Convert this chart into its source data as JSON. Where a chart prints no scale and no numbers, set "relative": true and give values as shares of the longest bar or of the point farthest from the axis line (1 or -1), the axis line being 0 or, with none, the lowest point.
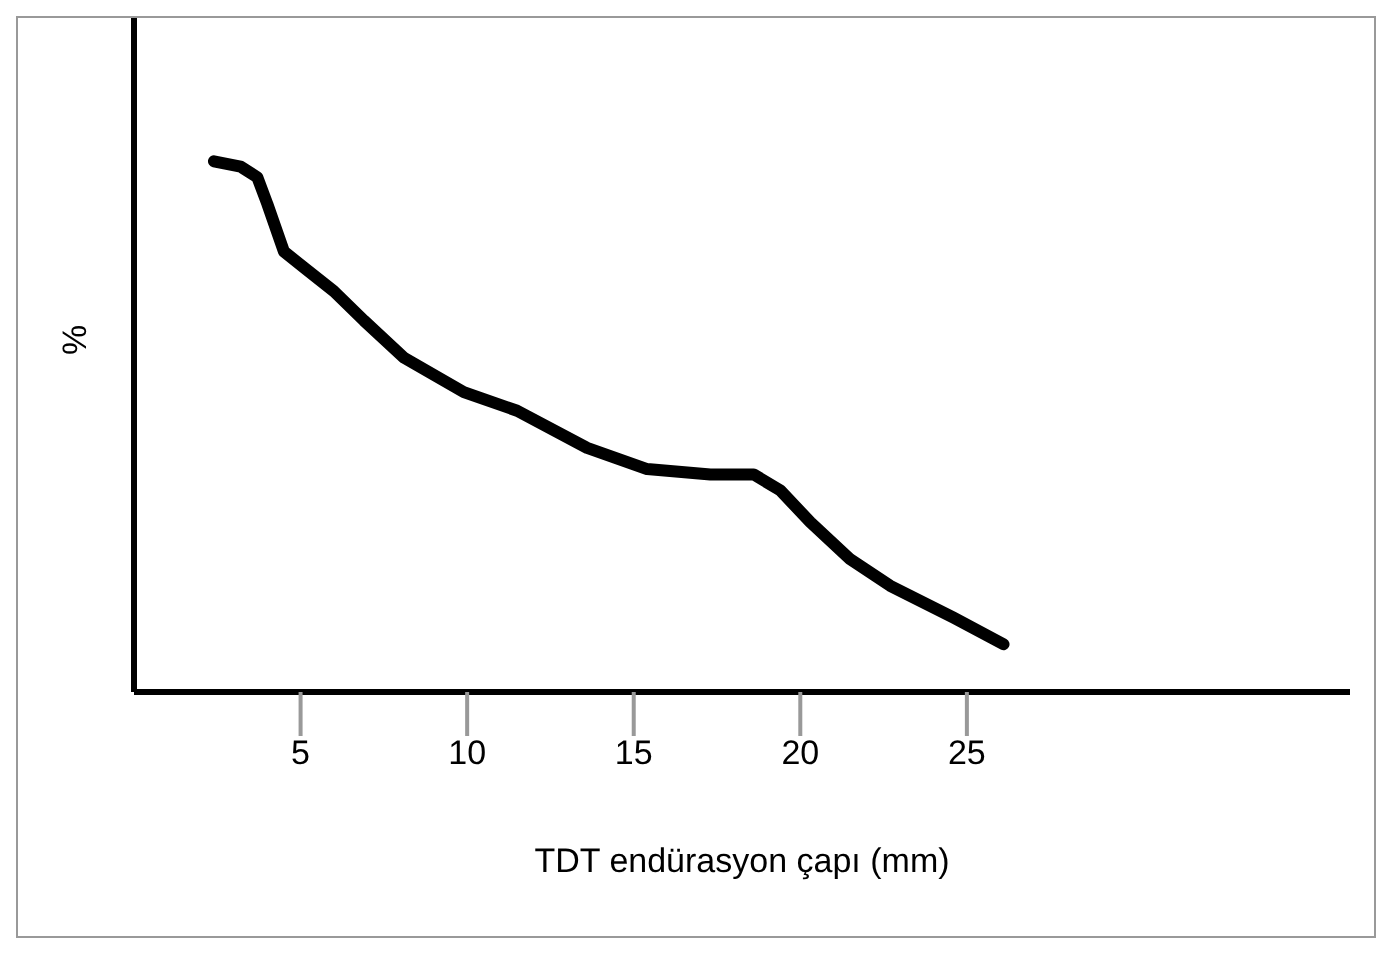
{
  "chart_data": {
    "type": "line",
    "xlabel": "TDT endürasyon çapı (mm)",
    "ylabel": "%",
    "relative": true,
    "xlim": [
      0,
      36.5
    ],
    "xticks": [
      5,
      10,
      15,
      20,
      25
    ],
    "grid": false,
    "legend": false,
    "marker": "none",
    "line_style": "solid",
    "series": [
      {
        "color": "#000000",
        "x": [
          2.4,
          3.2,
          3.7,
          4.0,
          4.5,
          5.1,
          6.0,
          6.9,
          8.1,
          9.9,
          11.5,
          13.6,
          15.4,
          17.3,
          18.6,
          19.4,
          20.3,
          21.5,
          22.7,
          24.6,
          26.1
        ],
        "values": [
          1.0,
          0.99,
          0.97,
          0.92,
          0.83,
          0.8,
          0.755,
          0.7,
          0.63,
          0.565,
          0.53,
          0.46,
          0.42,
          0.41,
          0.41,
          0.38,
          0.32,
          0.25,
          0.2,
          0.14,
          0.09
        ]
      }
    ]
  }
}
